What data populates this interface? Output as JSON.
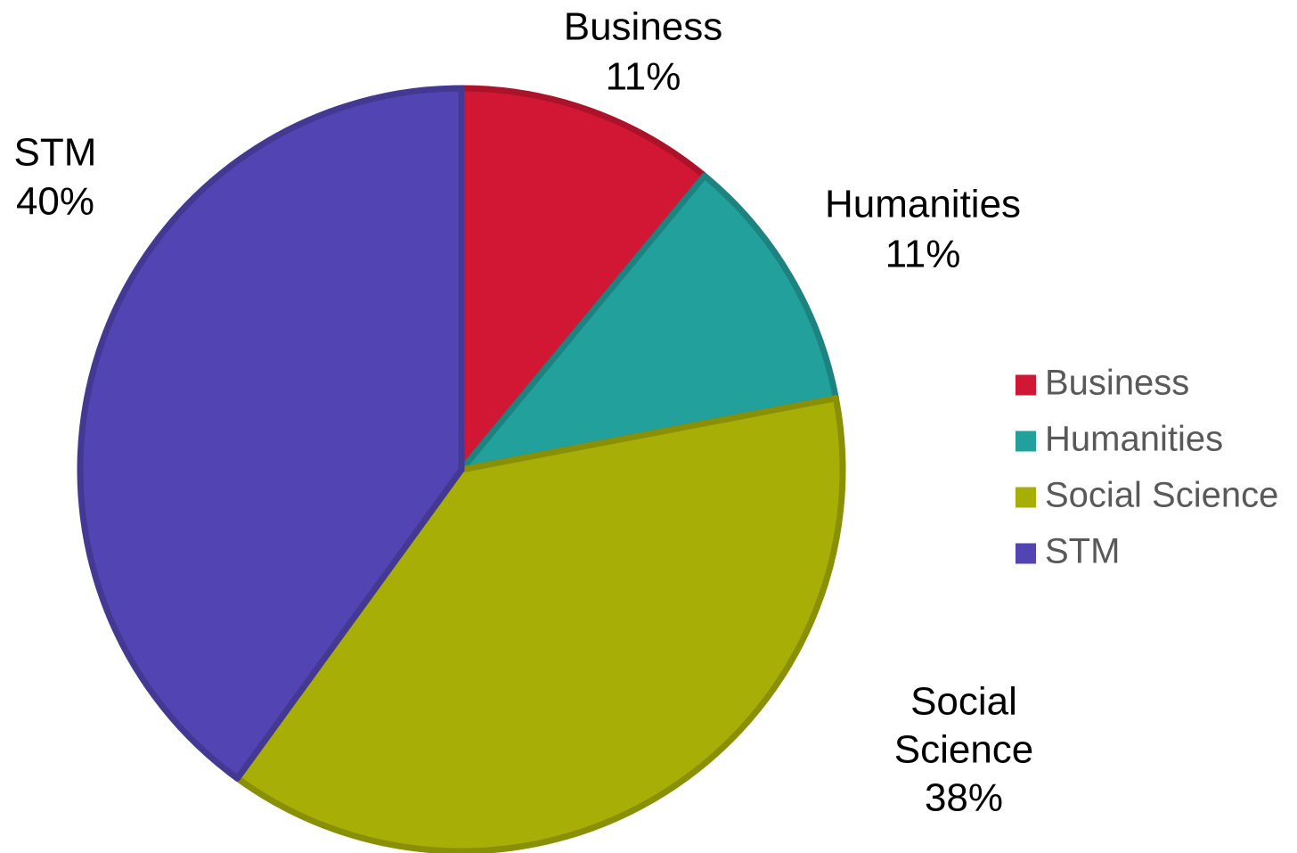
{
  "chart_data": {
    "type": "pie",
    "categories": [
      "Business",
      "Humanities",
      "Social Science",
      "STM"
    ],
    "values": [
      11,
      11,
      38,
      40
    ],
    "unit": "%",
    "data_labels": [
      [
        "Business",
        "11%"
      ],
      [
        "Humanities",
        "11%"
      ],
      [
        "Social",
        "Science",
        "38%"
      ],
      [
        "STM",
        "40%"
      ]
    ],
    "colors": {
      "Business": "#D21734",
      "Humanities": "#22A09C",
      "Social Science": "#A7AF07",
      "STM": "#5245B3"
    },
    "legend": {
      "position": "right",
      "entries": [
        "Business",
        "Humanities",
        "Social Science",
        "STM"
      ]
    }
  }
}
